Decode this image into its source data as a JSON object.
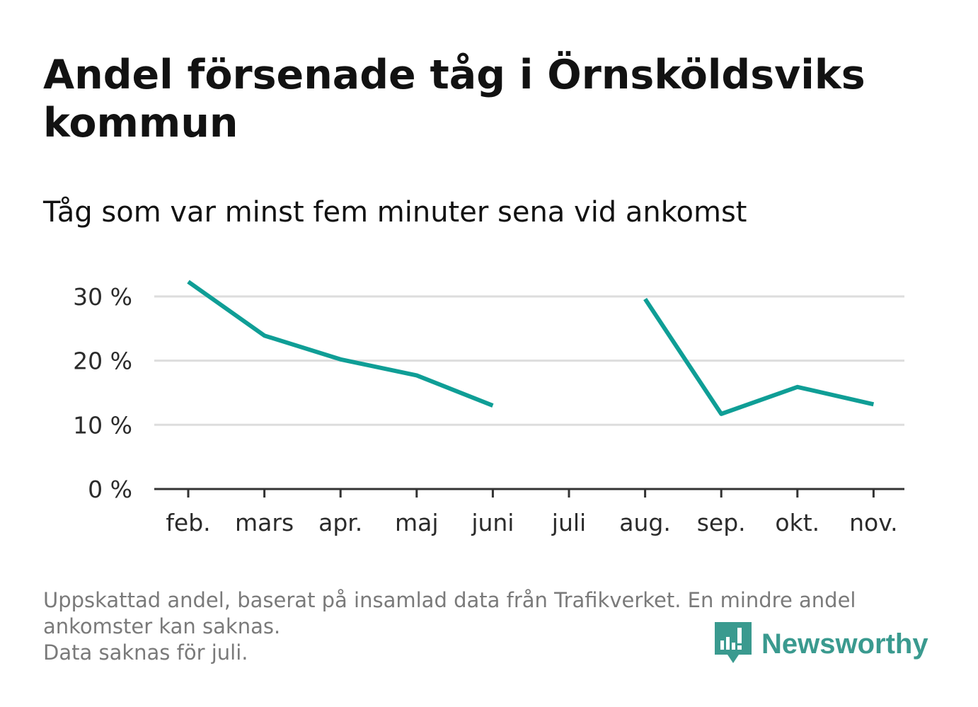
{
  "title": "Andel försenade tåg i Örnsköldsviks kommun",
  "subtitle": "Tåg som var minst fem minuter sena vid ankomst",
  "footer": {
    "line1": "Uppskattad andel, baserat på insamlad data från Trafikverket. En mindre andel",
    "line2": "ankomster kan saknas.",
    "line3": "Data saknas för juli."
  },
  "brand": {
    "name": "Newsworthy",
    "color": "#3a9a8f",
    "icon": "newsworthy-logo-icon"
  },
  "colors": {
    "line": "#0f9e96",
    "grid": "#dddddd",
    "axis": "#333333"
  },
  "chart_data": {
    "type": "line",
    "categories": [
      "feb.",
      "mars",
      "apr.",
      "maj",
      "juni",
      "juli",
      "aug.",
      "sep.",
      "okt.",
      "nov."
    ],
    "series": [
      {
        "values": [
          32.3,
          23.9,
          20.2,
          17.7,
          13.0,
          null,
          29.6,
          11.7,
          15.9,
          13.2
        ]
      }
    ],
    "ylim": [
      0,
      35
    ],
    "yticks": [
      0,
      10,
      20,
      30
    ],
    "ytick_labels": [
      "0 %",
      "10 %",
      "20 %",
      "30 %"
    ],
    "grid": true,
    "legend": "none"
  }
}
